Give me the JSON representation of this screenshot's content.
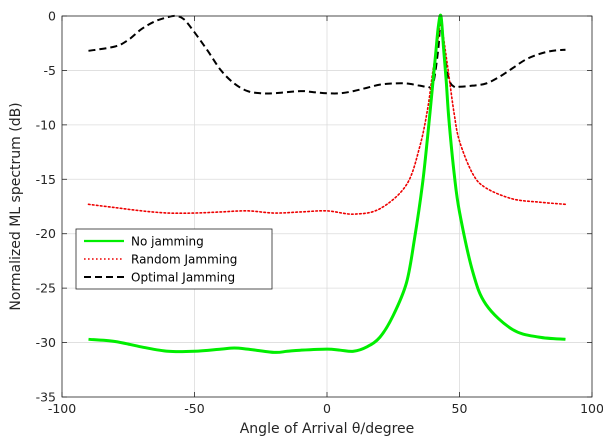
{
  "chart_data": {
    "type": "line",
    "title": "",
    "xlabel": "Angle of Arrival θ/degree",
    "ylabel": "Normalized ML spectrum (dB)",
    "xlim": [
      -100,
      100
    ],
    "ylim": [
      -35,
      0
    ],
    "xticks": [
      -100,
      -50,
      0,
      50,
      100
    ],
    "yticks": [
      -35,
      -30,
      -25,
      -20,
      -15,
      -10,
      -5,
      0
    ],
    "xtick_labels": [
      "-100",
      "-50",
      "0",
      "50",
      "100"
    ],
    "ytick_labels": [
      "-35",
      "-30",
      "-25",
      "-20",
      "-15",
      "-10",
      "-5",
      "0"
    ],
    "grid": true,
    "legend_position": "center-left",
    "series": [
      {
        "name": "No jamming",
        "color": "#00ee00",
        "style": "solid",
        "x": [
          -90,
          -80,
          -70,
          -60,
          -50,
          -40,
          -35,
          -30,
          -20,
          -15,
          -10,
          0,
          5,
          10,
          15,
          20,
          25,
          30,
          33,
          36,
          38,
          40,
          41,
          42,
          43,
          44,
          45,
          46,
          48,
          50,
          55,
          60,
          70,
          80,
          90
        ],
        "y": [
          -29.7,
          -29.9,
          -30.4,
          -30.8,
          -30.8,
          -30.6,
          -30.5,
          -30.6,
          -30.9,
          -30.8,
          -30.7,
          -30.6,
          -30.7,
          -30.8,
          -30.4,
          -29.5,
          -27.5,
          -24.5,
          -20.5,
          -15.5,
          -11,
          -6,
          -3.5,
          -1,
          0,
          -3,
          -6,
          -9.5,
          -14.5,
          -18,
          -23.5,
          -26.5,
          -28.8,
          -29.5,
          -29.7
        ]
      },
      {
        "name": "Random Jamming",
        "color": "#ee0000",
        "style": "dotted",
        "x": [
          -90,
          -80,
          -70,
          -60,
          -50,
          -40,
          -30,
          -20,
          -10,
          0,
          10,
          20,
          30,
          35,
          38,
          40,
          42,
          43,
          44,
          46,
          48,
          50,
          55,
          60,
          70,
          80,
          90
        ],
        "y": [
          -17.3,
          -17.6,
          -17.9,
          -18.1,
          -18.1,
          -18.0,
          -17.9,
          -18.1,
          -18.0,
          -17.9,
          -18.2,
          -17.7,
          -15.5,
          -12,
          -8.5,
          -5,
          -2,
          0,
          -2,
          -5.5,
          -9,
          -11.5,
          -14.5,
          -15.8,
          -16.8,
          -17.1,
          -17.3
        ]
      },
      {
        "name": "Optimal Jamming",
        "color": "#000000",
        "style": "dashed",
        "x": [
          -90,
          -80,
          -75,
          -70,
          -65,
          -60,
          -57,
          -54,
          -50,
          -45,
          -40,
          -35,
          -30,
          -25,
          -20,
          -10,
          -5,
          0,
          5,
          10,
          15,
          20,
          25,
          30,
          35,
          38,
          40,
          42,
          43,
          44,
          46,
          48,
          50,
          55,
          60,
          65,
          70,
          75,
          80,
          85,
          90
        ],
        "y": [
          -3.2,
          -2.8,
          -2.2,
          -1.2,
          -0.5,
          -0.1,
          0,
          -0.3,
          -1.5,
          -3.2,
          -5,
          -6.2,
          -6.9,
          -7.1,
          -7.1,
          -6.9,
          -7.0,
          -7.1,
          -7.1,
          -6.9,
          -6.6,
          -6.3,
          -6.2,
          -6.2,
          -6.4,
          -6.5,
          -6.3,
          -3,
          0,
          -3,
          -5.8,
          -6.5,
          -6.5,
          -6.4,
          -6.2,
          -5.6,
          -4.8,
          -4.0,
          -3.5,
          -3.2,
          -3.1
        ]
      }
    ]
  }
}
